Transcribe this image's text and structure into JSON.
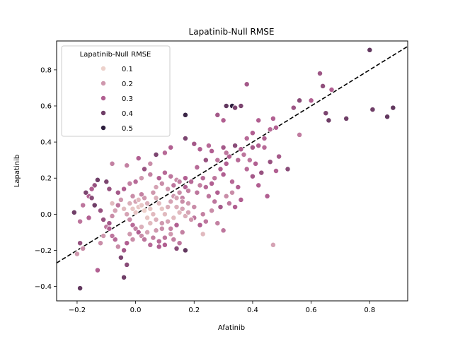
{
  "chart_data": {
    "type": "scatter",
    "title": "Lapatinib-Null RMSE",
    "xlabel": "Afatinib",
    "ylabel": "Lapatinib",
    "xlim": [
      -0.27,
      0.93
    ],
    "ylim": [
      -0.48,
      0.96
    ],
    "xticks": [
      "−0.2",
      "0.0",
      "0.2",
      "0.4",
      "0.6",
      "0.8"
    ],
    "xtick_values": [
      -0.2,
      0.0,
      0.2,
      0.4,
      0.6,
      0.8
    ],
    "yticks": [
      "−0.4",
      "−0.2",
      "0.0",
      "0.2",
      "0.4",
      "0.6",
      "0.8"
    ],
    "ytick_values": [
      -0.4,
      -0.2,
      0.0,
      0.2,
      0.4,
      0.6,
      0.8
    ],
    "legend": {
      "title": "Lapatinib-Null RMSE",
      "placement": "upper-left",
      "entries": [
        {
          "label": "0.1",
          "value": 0.1
        },
        {
          "label": "0.2",
          "value": 0.2
        },
        {
          "label": "0.3",
          "value": 0.3
        },
        {
          "label": "0.4",
          "value": 0.4
        },
        {
          "label": "0.5",
          "value": 0.5
        }
      ]
    },
    "reference_line": {
      "style": "dashed",
      "color": "#000000",
      "slope": 1,
      "intercept": 0
    },
    "color_scale": {
      "low": "#edd1cb",
      "mid": "#b15f91",
      "high": "#2d1e3e"
    },
    "points": [
      [
        0.8,
        0.91,
        0.42
      ],
      [
        0.63,
        0.78,
        0.33
      ],
      [
        0.64,
        0.71,
        0.35
      ],
      [
        0.67,
        0.69,
        0.3
      ],
      [
        0.56,
        0.63,
        0.36
      ],
      [
        0.6,
        0.63,
        0.3
      ],
      [
        0.54,
        0.59,
        0.33
      ],
      [
        0.65,
        0.56,
        0.38
      ],
      [
        0.66,
        0.52,
        0.4
      ],
      [
        0.72,
        0.53,
        0.4
      ],
      [
        0.81,
        0.58,
        0.4
      ],
      [
        0.88,
        0.59,
        0.42
      ],
      [
        0.86,
        0.54,
        0.42
      ],
      [
        0.56,
        0.44,
        0.25
      ],
      [
        0.47,
        0.53,
        0.3
      ],
      [
        0.48,
        0.48,
        0.3
      ],
      [
        0.46,
        0.47,
        0.28
      ],
      [
        0.52,
        0.25,
        0.36
      ],
      [
        0.38,
        0.72,
        0.32
      ],
      [
        0.31,
        0.6,
        0.42
      ],
      [
        0.33,
        0.6,
        0.5
      ],
      [
        0.34,
        0.59,
        0.38
      ],
      [
        0.36,
        0.6,
        0.38
      ],
      [
        0.28,
        0.55,
        0.32
      ],
      [
        0.17,
        0.55,
        0.48
      ],
      [
        0.3,
        0.52,
        0.3
      ],
      [
        0.42,
        0.52,
        0.3
      ],
      [
        0.4,
        0.45,
        0.3
      ],
      [
        0.38,
        0.42,
        0.28
      ],
      [
        0.44,
        0.42,
        0.3
      ],
      [
        0.34,
        0.38,
        0.36
      ],
      [
        0.36,
        0.36,
        0.3
      ],
      [
        0.4,
        0.37,
        0.32
      ],
      [
        0.42,
        0.38,
        0.3
      ],
      [
        0.44,
        0.37,
        0.28
      ],
      [
        0.37,
        0.33,
        0.26
      ],
      [
        0.32,
        0.32,
        0.3
      ],
      [
        0.35,
        0.3,
        0.28
      ],
      [
        0.39,
        0.3,
        0.26
      ],
      [
        0.41,
        0.28,
        0.3
      ],
      [
        0.38,
        0.25,
        0.28
      ],
      [
        0.43,
        0.23,
        0.34
      ],
      [
        0.42,
        0.16,
        0.3
      ],
      [
        0.46,
        0.29,
        0.34
      ],
      [
        0.31,
        0.28,
        0.3
      ],
      [
        0.29,
        0.25,
        0.3
      ],
      [
        0.3,
        0.22,
        0.3
      ],
      [
        0.27,
        0.2,
        0.26
      ],
      [
        0.26,
        0.17,
        0.3
      ],
      [
        0.24,
        0.15,
        0.28
      ],
      [
        0.25,
        0.1,
        0.26
      ],
      [
        0.28,
        0.12,
        0.3
      ],
      [
        0.27,
        0.07,
        0.26
      ],
      [
        0.29,
        0.04,
        0.32
      ],
      [
        0.26,
        0.02,
        0.22
      ],
      [
        0.23,
        0.0,
        0.24
      ],
      [
        0.24,
        -0.04,
        0.26
      ],
      [
        0.22,
        -0.06,
        0.3
      ],
      [
        0.2,
        -0.02,
        0.26
      ],
      [
        0.2,
        0.04,
        0.22
      ],
      [
        0.18,
        0.06,
        0.2
      ],
      [
        0.16,
        0.09,
        0.24
      ],
      [
        0.15,
        0.12,
        0.22
      ],
      [
        0.17,
        0.15,
        0.3
      ],
      [
        0.14,
        0.19,
        0.22
      ],
      [
        0.12,
        0.21,
        0.26
      ],
      [
        0.1,
        0.23,
        0.28
      ],
      [
        0.08,
        0.2,
        0.3
      ],
      [
        0.05,
        0.22,
        0.24
      ],
      [
        0.03,
        0.25,
        0.34
      ],
      [
        0.02,
        0.2,
        0.2
      ],
      [
        0.0,
        0.18,
        0.28
      ],
      [
        -0.02,
        0.17,
        0.24
      ],
      [
        -0.04,
        0.14,
        0.3
      ],
      [
        -0.06,
        0.12,
        0.32
      ],
      [
        -0.09,
        0.14,
        0.34
      ],
      [
        -0.1,
        0.18,
        0.38
      ],
      [
        -0.13,
        0.19,
        0.4
      ],
      [
        -0.14,
        0.16,
        0.34
      ],
      [
        -0.15,
        0.14,
        0.3
      ],
      [
        -0.16,
        0.1,
        0.3
      ],
      [
        -0.18,
        0.05,
        0.26
      ],
      [
        -0.19,
        -0.04,
        0.26
      ],
      [
        -0.21,
        0.01,
        0.4
      ],
      [
        -0.19,
        -0.16,
        0.34
      ],
      [
        -0.2,
        -0.22,
        0.2
      ],
      [
        -0.18,
        -0.19,
        0.22
      ],
      [
        -0.19,
        -0.41,
        0.42
      ],
      [
        -0.13,
        -0.31,
        0.3
      ],
      [
        -0.12,
        -0.16,
        0.22
      ],
      [
        -0.11,
        -0.12,
        0.2
      ],
      [
        -0.1,
        -0.07,
        0.26
      ],
      [
        -0.09,
        -0.05,
        0.32
      ],
      [
        -0.08,
        -0.01,
        0.22
      ],
      [
        -0.07,
        0.02,
        0.18
      ],
      [
        -0.06,
        0.05,
        0.26
      ],
      [
        -0.05,
        0.08,
        0.2
      ],
      [
        -0.04,
        0.03,
        0.14
      ],
      [
        -0.03,
        0.0,
        0.18
      ],
      [
        -0.02,
        -0.03,
        0.22
      ],
      [
        -0.01,
        -0.06,
        0.28
      ],
      [
        0.0,
        -0.08,
        0.24
      ],
      [
        0.01,
        -0.1,
        0.3
      ],
      [
        0.02,
        -0.12,
        0.22
      ],
      [
        0.03,
        -0.14,
        0.26
      ],
      [
        -0.03,
        -0.16,
        0.3
      ],
      [
        -0.04,
        -0.2,
        0.32
      ],
      [
        -0.07,
        -0.14,
        0.28
      ],
      [
        -0.05,
        -0.24,
        0.38
      ],
      [
        -0.03,
        -0.28,
        0.36
      ],
      [
        -0.04,
        -0.35,
        0.4
      ],
      [
        0.05,
        -0.17,
        0.28
      ],
      [
        0.08,
        -0.18,
        0.3
      ],
      [
        0.1,
        -0.13,
        0.26
      ],
      [
        0.12,
        -0.08,
        0.24
      ],
      [
        0.14,
        -0.06,
        0.3
      ],
      [
        0.16,
        -0.1,
        0.24
      ],
      [
        0.17,
        -0.2,
        0.42
      ],
      [
        0.14,
        -0.19,
        0.36
      ],
      [
        0.09,
        -0.05,
        0.2
      ],
      [
        0.07,
        -0.03,
        0.16
      ],
      [
        0.06,
        0.0,
        0.14
      ],
      [
        0.05,
        0.03,
        0.12
      ],
      [
        0.04,
        0.06,
        0.16
      ],
      [
        0.03,
        0.09,
        0.2
      ],
      [
        0.02,
        0.11,
        0.24
      ],
      [
        0.01,
        0.04,
        0.12
      ],
      [
        0.0,
        0.01,
        0.12
      ],
      [
        0.0,
        0.07,
        0.18
      ],
      [
        -0.01,
        0.1,
        0.22
      ],
      [
        0.06,
        0.12,
        0.2
      ],
      [
        0.07,
        0.09,
        0.16
      ],
      [
        0.08,
        0.06,
        0.14
      ],
      [
        0.09,
        0.03,
        0.12
      ],
      [
        0.1,
        0.0,
        0.14
      ],
      [
        0.11,
        0.04,
        0.16
      ],
      [
        0.12,
        0.07,
        0.18
      ],
      [
        0.13,
        0.1,
        0.2
      ],
      [
        0.14,
        0.04,
        0.16
      ],
      [
        0.15,
        0.01,
        0.14
      ],
      [
        0.16,
        0.03,
        0.18
      ],
      [
        0.17,
        -0.01,
        0.16
      ],
      [
        0.18,
        0.01,
        0.18
      ],
      [
        0.19,
        -0.03,
        0.2
      ],
      [
        0.13,
        -0.02,
        0.14
      ],
      [
        0.11,
        -0.04,
        0.18
      ],
      [
        0.09,
        -0.08,
        0.22
      ],
      [
        0.07,
        -0.09,
        0.2
      ],
      [
        0.05,
        -0.05,
        0.14
      ],
      [
        0.04,
        -0.02,
        0.12
      ],
      [
        0.03,
        0.02,
        0.1
      ],
      [
        0.02,
        0.05,
        0.12
      ],
      [
        0.01,
        0.08,
        0.14
      ],
      [
        -0.01,
        0.03,
        0.12
      ],
      [
        -0.02,
        0.06,
        0.16
      ],
      [
        0.21,
        0.12,
        0.26
      ],
      [
        0.22,
        0.16,
        0.24
      ],
      [
        0.23,
        0.2,
        0.28
      ],
      [
        0.21,
        0.26,
        0.28
      ],
      [
        0.24,
        0.3,
        0.34
      ],
      [
        0.22,
        0.36,
        0.3
      ],
      [
        0.2,
        0.39,
        0.32
      ],
      [
        0.17,
        0.42,
        0.38
      ],
      [
        0.12,
        0.37,
        0.3
      ],
      [
        0.1,
        0.34,
        0.28
      ],
      [
        0.07,
        0.33,
        0.38
      ],
      [
        0.05,
        0.28,
        0.22
      ],
      [
        0.01,
        0.31,
        0.3
      ],
      [
        -0.03,
        0.27,
        0.24
      ],
      [
        -0.08,
        0.28,
        0.24
      ],
      [
        0.25,
        0.38,
        0.28
      ],
      [
        0.26,
        0.35,
        0.3
      ],
      [
        0.28,
        0.3,
        0.26
      ],
      [
        0.3,
        0.37,
        0.32
      ],
      [
        0.31,
        0.34,
        0.26
      ],
      [
        0.23,
        -0.11,
        0.14
      ],
      [
        0.28,
        -0.05,
        0.24
      ],
      [
        0.3,
        -0.09,
        0.26
      ],
      [
        0.33,
        0.18,
        0.28
      ],
      [
        0.35,
        0.15,
        0.3
      ],
      [
        0.31,
        0.1,
        0.22
      ],
      [
        0.32,
        0.06,
        0.26
      ],
      [
        0.34,
        0.04,
        0.3
      ],
      [
        0.36,
        0.08,
        0.3
      ],
      [
        0.33,
        0.12,
        0.22
      ],
      [
        0.47,
        -0.17,
        0.18
      ],
      [
        0.4,
        0.21,
        0.32
      ],
      [
        0.45,
        0.1,
        0.3
      ],
      [
        0.48,
        0.24,
        0.3
      ],
      [
        0.49,
        0.32,
        0.32
      ],
      [
        -0.06,
        -0.18,
        0.22
      ],
      [
        -0.08,
        -0.12,
        0.26
      ],
      [
        -0.09,
        -0.08,
        0.3
      ],
      [
        -0.11,
        -0.03,
        0.34
      ],
      [
        -0.12,
        0.02,
        0.34
      ],
      [
        -0.14,
        0.05,
        0.4
      ],
      [
        -0.15,
        0.09,
        0.36
      ],
      [
        -0.16,
        -0.02,
        0.3
      ],
      [
        -0.17,
        0.12,
        0.38
      ],
      [
        -0.08,
        0.06,
        0.14
      ],
      [
        0.07,
        0.15,
        0.18
      ],
      [
        0.09,
        0.17,
        0.22
      ],
      [
        0.11,
        0.14,
        0.2
      ],
      [
        0.13,
        0.16,
        0.26
      ],
      [
        0.15,
        0.18,
        0.24
      ],
      [
        0.17,
        0.2,
        0.3
      ],
      [
        0.19,
        0.18,
        0.28
      ],
      [
        0.18,
        0.13,
        0.24
      ],
      [
        0.16,
        0.07,
        0.22
      ],
      [
        0.14,
        0.09,
        0.18
      ],
      [
        -0.02,
        -0.11,
        0.2
      ],
      [
        -0.01,
        -0.14,
        0.22
      ],
      [
        0.02,
        -0.07,
        0.16
      ],
      [
        0.04,
        -0.1,
        0.18
      ],
      [
        0.06,
        -0.13,
        0.24
      ],
      [
        0.08,
        -0.15,
        0.28
      ],
      [
        0.1,
        -0.17,
        0.3
      ],
      [
        0.12,
        -0.11,
        0.2
      ],
      [
        0.13,
        -0.14,
        0.24
      ],
      [
        0.15,
        -0.16,
        0.26
      ]
    ]
  }
}
